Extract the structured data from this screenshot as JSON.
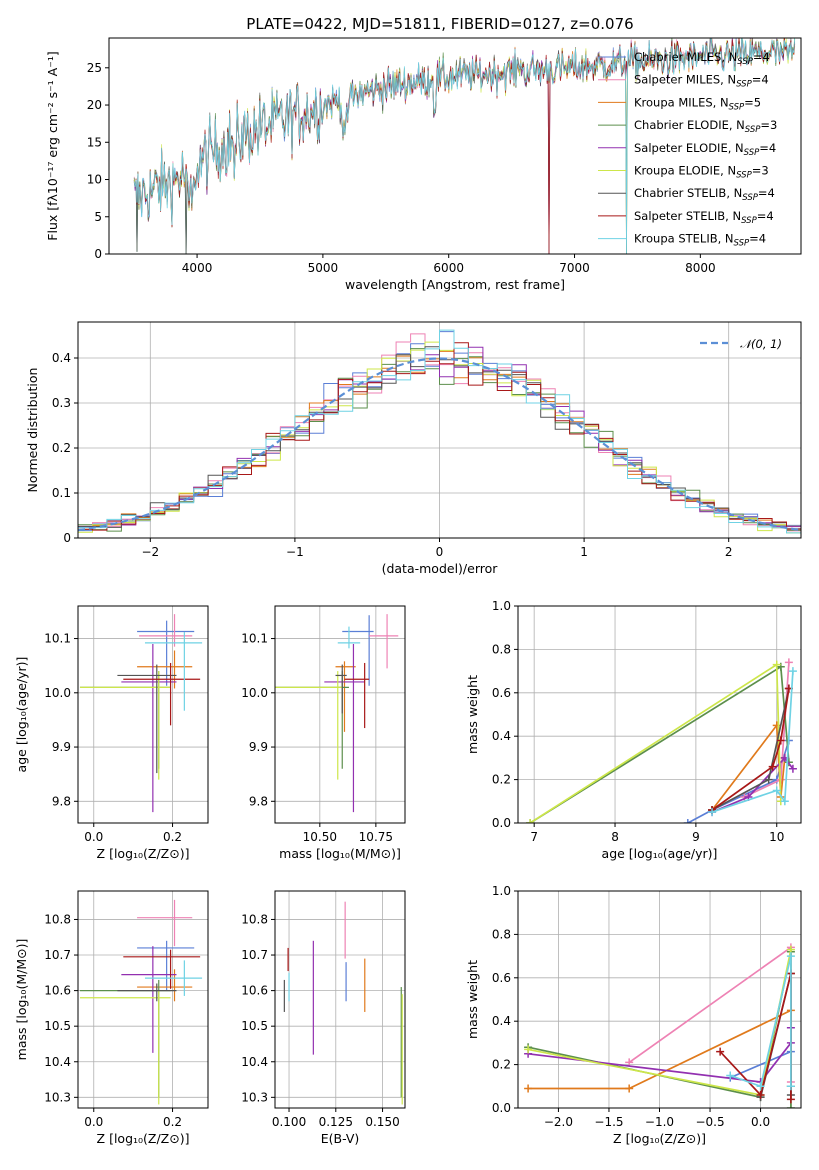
{
  "figure": {
    "title": "PLATE=0422, MJD=51811, FIBERID=0127, z=0.076"
  },
  "colors": {
    "Chabrier MILES": "#5b7fd6",
    "Salpeter MILES": "#ee82b4",
    "Kroupa MILES": "#e07a1c",
    "Chabrier ELODIE": "#5c8f4c",
    "Salpeter ELODIE": "#9230b0",
    "Kroupa ELODIE": "#cde64a",
    "Chabrier STELIB": "#555555",
    "Salpeter STELIB": "#a81818",
    "Kroupa STELIB": "#6fd2e4",
    "normal": "#5b8fd6"
  },
  "chart_data": [
    {
      "id": "spectrum",
      "type": "line",
      "xlabel": "wavelength [Angstrom, rest frame]",
      "ylabel": "Flux [fλ10⁻¹⁷ erg cm⁻² s⁻¹ A⁻¹]",
      "xlim": [
        3300,
        8800
      ],
      "ylim": [
        0,
        29
      ],
      "xticks": [
        4000,
        5000,
        6000,
        7000,
        8000
      ],
      "yticks": [
        0,
        5,
        10,
        15,
        20,
        25
      ],
      "legend_position": "right",
      "legend": [
        {
          "name": "Chabrier MILES",
          "label": "Chabrier MILES, N",
          "sub": "SSP",
          "tail": "=4"
        },
        {
          "name": "Salpeter MILES",
          "label": "Salpeter MILES, N",
          "sub": "SSP",
          "tail": "=4"
        },
        {
          "name": "Kroupa MILES",
          "label": "Kroupa MILES, N",
          "sub": "SSP",
          "tail": "=5"
        },
        {
          "name": "Chabrier ELODIE",
          "label": "Chabrier ELODIE, N",
          "sub": "SSP",
          "tail": "=3"
        },
        {
          "name": "Salpeter ELODIE",
          "label": "Salpeter ELODIE, N",
          "sub": "SSP",
          "tail": "=4"
        },
        {
          "name": "Kroupa ELODIE",
          "label": "Kroupa ELODIE, N",
          "sub": "SSP",
          "tail": "=3"
        },
        {
          "name": "Chabrier STELIB",
          "label": "Chabrier STELIB, N",
          "sub": "SSP",
          "tail": "=4"
        },
        {
          "name": "Salpeter STELIB",
          "label": "Salpeter STELIB, N",
          "sub": "SSP",
          "tail": "=4"
        },
        {
          "name": "Kroupa STELIB",
          "label": "Kroupa STELIB, N",
          "sub": "SSP",
          "tail": "=4"
        }
      ],
      "continuum": {
        "x": [
          3500,
          3700,
          3900,
          4100,
          4300,
          4600,
          5000,
          5500,
          6000,
          6500,
          7000,
          7500,
          8000,
          8600
        ],
        "y": [
          7.5,
          9,
          10.5,
          13.5,
          15.5,
          17.5,
          20,
          22.5,
          23.8,
          24.5,
          25,
          25.8,
          26.5,
          27
        ]
      },
      "drops": [
        {
          "x": 3520,
          "y": 0.3
        },
        {
          "x": 3910,
          "y": 0
        },
        {
          "x": 6800,
          "y": 0
        },
        {
          "x": 7410,
          "y": 0
        }
      ]
    },
    {
      "id": "residuals",
      "type": "histogram",
      "xlabel": "(data-model)/error",
      "ylabel": "Normed distribution",
      "xlim": [
        -2.5,
        2.5
      ],
      "ylim": [
        0,
        0.48
      ],
      "xticks": [
        -2,
        -1,
        0,
        1,
        2
      ],
      "yticks": [
        0,
        0.1,
        0.2,
        0.3,
        0.4
      ],
      "grid": true,
      "legend_position": "top-right",
      "bin_width": 0.1,
      "normal_label": "𝒩(0, 1)"
    },
    {
      "id": "age-vs-Z",
      "type": "errorbar",
      "xlabel": "Z [log₁₀(Z/Z⊙)]",
      "ylabel": "age  [log₁₀(age/yr)]",
      "xlim": [
        -0.04,
        0.29
      ],
      "ylim": [
        9.76,
        10.16
      ],
      "xticks": [
        0.0,
        0.2
      ],
      "xtick_labels": [
        "0.0",
        "0.2"
      ],
      "yticks": [
        9.8,
        9.9,
        10.0,
        10.1
      ],
      "ytick_labels": [
        "9.8",
        "9.9",
        "10.0",
        "10.1"
      ],
      "grid": true,
      "points": [
        {
          "series": "Chabrier MILES",
          "x": 0.185,
          "xl": 0.075,
          "xh": 0.07,
          "y": 10.113,
          "yl": 0.1,
          "yh": 0.02
        },
        {
          "series": "Salpeter MILES",
          "x": 0.205,
          "xl": 0.09,
          "xh": 0.045,
          "y": 10.105,
          "yl": 0.02,
          "yh": 0.04
        },
        {
          "series": "Kroupa MILES",
          "x": 0.205,
          "xl": 0.095,
          "xh": 0.045,
          "y": 10.048,
          "yl": 0.04,
          "yh": 0.03
        },
        {
          "series": "Chabrier ELODIE",
          "x": 0.165,
          "xl": 0.2,
          "xh": 0.03,
          "y": 10.01,
          "yl": 0.15,
          "yh": 0.03
        },
        {
          "series": "Salpeter ELODIE",
          "x": 0.15,
          "xl": 0.08,
          "xh": 0.06,
          "y": 10.02,
          "yl": 0.24,
          "yh": 0.07
        },
        {
          "series": "Kroupa ELODIE",
          "x": 0.165,
          "xl": 0.2,
          "xh": 0.03,
          "y": 10.01,
          "yl": 0.17,
          "yh": 0.03
        },
        {
          "series": "Chabrier STELIB",
          "x": 0.16,
          "xl": 0.1,
          "xh": 0.05,
          "y": 10.032,
          "yl": 0.18,
          "yh": 0.02
        },
        {
          "series": "Salpeter STELIB",
          "x": 0.195,
          "xl": 0.12,
          "xh": 0.075,
          "y": 10.025,
          "yl": 0.085,
          "yh": 0.03
        },
        {
          "series": "Kroupa STELIB",
          "x": 0.23,
          "xl": 0.1,
          "xh": 0.045,
          "y": 10.092,
          "yl": 0.125,
          "yh": 0.02
        }
      ]
    },
    {
      "id": "age-vs-mass",
      "type": "errorbar",
      "xlabel": "mass [log₁₀(M/M⊙)]",
      "ylabel": "",
      "xlim": [
        10.3,
        10.88
      ],
      "ylim": [
        9.76,
        10.16
      ],
      "xticks": [
        10.5,
        10.75
      ],
      "xtick_labels": [
        "10.50",
        "10.75"
      ],
      "yticks": [
        9.8,
        9.9,
        10.0,
        10.1
      ],
      "ytick_labels": [
        "9.8",
        "9.9",
        "10.0",
        "10.1"
      ],
      "grid": true,
      "points": [
        {
          "series": "Chabrier MILES",
          "x": 10.72,
          "xl": 0.12,
          "xh": 0.02,
          "y": 10.113,
          "yl": 0.1,
          "yh": 0.03
        },
        {
          "series": "Salpeter MILES",
          "x": 10.8,
          "xl": 0.08,
          "xh": 0.05,
          "y": 10.105,
          "yl": 0.06,
          "yh": 0.04
        },
        {
          "series": "Kroupa MILES",
          "x": 10.61,
          "xl": 0.04,
          "xh": 0.05,
          "y": 10.048,
          "yl": 0.12,
          "yh": 0.01
        },
        {
          "series": "Chabrier ELODIE",
          "x": 10.6,
          "xl": 0.3,
          "xh": 0.03,
          "y": 10.01,
          "yl": 0.15,
          "yh": 0.03
        },
        {
          "series": "Salpeter ELODIE",
          "x": 10.65,
          "xl": 0.13,
          "xh": 0.05,
          "y": 10.02,
          "yl": 0.24,
          "yh": 0.07
        },
        {
          "series": "Kroupa ELODIE",
          "x": 10.58,
          "xl": 0.28,
          "xh": 0.02,
          "y": 10.01,
          "yl": 0.17,
          "yh": 0.03
        },
        {
          "series": "Chabrier STELIB",
          "x": 10.6,
          "xl": 0.03,
          "xh": 0.02,
          "y": 10.032,
          "yl": 0.07,
          "yh": 0.02
        },
        {
          "series": "Salpeter STELIB",
          "x": 10.7,
          "xl": 0.09,
          "xh": 0.02,
          "y": 10.025,
          "yl": 0.09,
          "yh": 0.03
        },
        {
          "series": "Kroupa STELIB",
          "x": 10.63,
          "xl": 0.05,
          "xh": 0.05,
          "y": 10.092,
          "yl": 0.01,
          "yh": 0.03
        }
      ]
    },
    {
      "id": "weight-vs-age",
      "type": "line",
      "xlabel": "age  [log₁₀(age/yr)]",
      "ylabel": "mass weight",
      "xlim": [
        6.8,
        10.3
      ],
      "ylim": [
        0,
        1
      ],
      "xticks": [
        7,
        8,
        9,
        10
      ],
      "xtick_labels": [
        "7",
        "8",
        "9",
        "10"
      ],
      "yticks": [
        0,
        0.2,
        0.4,
        0.6,
        0.8,
        1.0
      ],
      "ytick_labels": [
        "0.0",
        "0.2",
        "0.4",
        "0.6",
        "0.8",
        "1.0"
      ],
      "grid": true,
      "series": [
        {
          "name": "Chabrier MILES",
          "x": [
            8.9,
            9.2,
            10.0,
            10.15
          ],
          "y": [
            0.0,
            0.06,
            0.2,
            0.38
          ]
        },
        {
          "name": "Salpeter MILES",
          "x": [
            9.6,
            10.05,
            10.15
          ],
          "y": [
            0.12,
            0.2,
            0.74
          ]
        },
        {
          "name": "Kroupa MILES",
          "x": [
            9.2,
            10.0,
            10.05,
            10.1
          ],
          "y": [
            0.06,
            0.45,
            0.12,
            0.3
          ]
        },
        {
          "name": "Chabrier ELODIE",
          "x": [
            6.95,
            10.05,
            10.15
          ],
          "y": [
            0.0,
            0.72,
            0.28
          ]
        },
        {
          "name": "Salpeter ELODIE",
          "x": [
            9.2,
            9.65,
            10.1,
            10.2
          ],
          "y": [
            0.05,
            0.12,
            0.3,
            0.25
          ]
        },
        {
          "name": "Kroupa ELODIE",
          "x": [
            6.95,
            10.0,
            10.05
          ],
          "y": [
            0.0,
            0.73,
            0.1
          ]
        },
        {
          "name": "Chabrier STELIB",
          "x": [
            9.2,
            9.9,
            10.15
          ],
          "y": [
            0.06,
            0.2,
            0.62
          ]
        },
        {
          "name": "Salpeter STELIB",
          "x": [
            9.2,
            9.95,
            10.05,
            10.15
          ],
          "y": [
            0.06,
            0.26,
            0.38,
            0.62
          ]
        },
        {
          "name": "Kroupa STELIB",
          "x": [
            9.2,
            10.0,
            10.1,
            10.2
          ],
          "y": [
            0.05,
            0.15,
            0.1,
            0.7
          ]
        }
      ]
    },
    {
      "id": "mass-vs-Z",
      "type": "errorbar",
      "xlabel": "Z [log₁₀(Z/Z⊙)]",
      "ylabel": "mass [log₁₀(M/M⊙)]",
      "xlim": [
        -0.04,
        0.29
      ],
      "ylim": [
        10.27,
        10.88
      ],
      "xticks": [
        0.0,
        0.2
      ],
      "xtick_labels": [
        "0.0",
        "0.2"
      ],
      "yticks": [
        10.3,
        10.4,
        10.5,
        10.6,
        10.7,
        10.8
      ],
      "ytick_labels": [
        "10.3",
        "10.4",
        "10.5",
        "10.6",
        "10.7",
        "10.8"
      ],
      "grid": true,
      "points": [
        {
          "series": "Chabrier MILES",
          "x": 0.185,
          "xl": 0.075,
          "xh": 0.07,
          "y": 10.72,
          "yl": 0.12,
          "yh": 0.02
        },
        {
          "series": "Salpeter MILES",
          "x": 0.205,
          "xl": 0.095,
          "xh": 0.045,
          "y": 10.805,
          "yl": 0.08,
          "yh": 0.05
        },
        {
          "series": "Kroupa MILES",
          "x": 0.205,
          "xl": 0.095,
          "xh": 0.045,
          "y": 10.61,
          "yl": 0.04,
          "yh": 0.05
        },
        {
          "series": "Chabrier ELODIE",
          "x": 0.165,
          "xl": 0.2,
          "xh": 0.03,
          "y": 10.6,
          "yl": 0.3,
          "yh": 0.03
        },
        {
          "series": "Salpeter ELODIE",
          "x": 0.15,
          "xl": 0.08,
          "xh": 0.06,
          "y": 10.645,
          "yl": 0.22,
          "yh": 0.08
        },
        {
          "series": "Kroupa ELODIE",
          "x": 0.165,
          "xl": 0.2,
          "xh": 0.03,
          "y": 10.58,
          "yl": 0.3,
          "yh": 0.02
        },
        {
          "series": "Chabrier STELIB",
          "x": 0.16,
          "xl": 0.1,
          "xh": 0.05,
          "y": 10.6,
          "yl": 0.03,
          "yh": 0.02
        },
        {
          "series": "Salpeter STELIB",
          "x": 0.195,
          "xl": 0.12,
          "xh": 0.075,
          "y": 10.695,
          "yl": 0.09,
          "yh": 0.02
        },
        {
          "series": "Kroupa STELIB",
          "x": 0.23,
          "xl": 0.1,
          "xh": 0.045,
          "y": 10.635,
          "yl": 0.05,
          "yh": 0.05
        }
      ]
    },
    {
      "id": "mass-vs-EBV",
      "type": "errorbar",
      "xlabel": "E(B-V)",
      "ylabel": "",
      "xlim": [
        0.0925,
        0.162
      ],
      "ylim": [
        10.27,
        10.88
      ],
      "xticks": [
        0.1,
        0.125,
        0.15
      ],
      "xtick_labels": [
        "0.100",
        "0.125",
        "0.150"
      ],
      "yticks": [
        10.3,
        10.4,
        10.5,
        10.6,
        10.7,
        10.8
      ],
      "ytick_labels": [
        "10.3",
        "10.4",
        "10.5",
        "10.6",
        "10.7",
        "10.8"
      ],
      "grid": true,
      "points": [
        {
          "series": "Chabrier MILES",
          "x": 0.1305,
          "xl": 0,
          "xh": 0,
          "y": 10.63,
          "yl": 0.06,
          "yh": 0.05
        },
        {
          "series": "Salpeter MILES",
          "x": 0.13,
          "xl": 0,
          "xh": 0,
          "y": 10.76,
          "yl": 0.07,
          "yh": 0.09
        },
        {
          "series": "Kroupa MILES",
          "x": 0.1405,
          "xl": 0,
          "xh": 0,
          "y": 10.62,
          "yl": 0.08,
          "yh": 0.07
        },
        {
          "series": "Chabrier ELODIE",
          "x": 0.16,
          "xl": 0,
          "xh": 0,
          "y": 10.45,
          "yl": 0.15,
          "yh": 0.16
        },
        {
          "series": "Salpeter ELODIE",
          "x": 0.113,
          "xl": 0,
          "xh": 0,
          "y": 10.58,
          "yl": 0.16,
          "yh": 0.16
        },
        {
          "series": "Kroupa ELODIE",
          "x": 0.1605,
          "xl": 0,
          "xh": 0,
          "y": 10.44,
          "yl": 0.16,
          "yh": 0.15
        },
        {
          "series": "Chabrier STELIB",
          "x": 0.0975,
          "xl": 0,
          "xh": 0,
          "y": 10.59,
          "yl": 0.05,
          "yh": 0.04
        },
        {
          "series": "Salpeter STELIB",
          "x": 0.0995,
          "xl": 0,
          "xh": 0,
          "y": 10.685,
          "yl": 0.03,
          "yh": 0.035
        },
        {
          "series": "Kroupa STELIB",
          "x": 0.1,
          "xl": 0,
          "xh": 0,
          "y": 10.61,
          "yl": 0.04,
          "yh": 0.04
        }
      ]
    },
    {
      "id": "weight-vs-Z",
      "type": "line",
      "xlabel": "Z [log₁₀(Z/Z⊙)]",
      "ylabel": "mass weight",
      "xlim": [
        -2.4,
        0.4
      ],
      "ylim": [
        0,
        1
      ],
      "xticks": [
        -2.0,
        -1.5,
        -1.0,
        -0.5,
        0.0
      ],
      "xtick_labels": [
        "−2.0",
        "−1.5",
        "−1.0",
        "−0.5",
        "0.0"
      ],
      "yticks": [
        0,
        0.2,
        0.4,
        0.6,
        0.8,
        1.0
      ],
      "ytick_labels": [
        "0.0",
        "0.2",
        "0.4",
        "0.6",
        "0.8",
        "1.0"
      ],
      "grid": true,
      "series": [
        {
          "name": "Chabrier MILES",
          "x": [
            -0.3,
            0.3,
            0.3
          ],
          "y": [
            0.14,
            0.26,
            0.1
          ]
        },
        {
          "name": "Salpeter MILES",
          "x": [
            -1.3,
            0.3,
            0.3
          ],
          "y": [
            0.21,
            0.74,
            0.12
          ]
        },
        {
          "name": "Kroupa MILES",
          "x": [
            -2.3,
            -1.3,
            0.3,
            0.3
          ],
          "y": [
            0.09,
            0.09,
            0.45,
            0.1
          ]
        },
        {
          "name": "Chabrier ELODIE",
          "x": [
            -2.3,
            0.0,
            0.3,
            0.3
          ],
          "y": [
            0.28,
            0.05,
            0.72,
            0.0
          ]
        },
        {
          "name": "Salpeter ELODIE",
          "x": [
            -2.3,
            0.0,
            0.3,
            0.3
          ],
          "y": [
            0.25,
            0.12,
            0.3,
            0.37
          ]
        },
        {
          "name": "Kroupa ELODIE",
          "x": [
            -2.3,
            0.0,
            0.3
          ],
          "y": [
            0.27,
            0.06,
            0.73
          ]
        },
        {
          "name": "Chabrier STELIB",
          "x": [
            0.0,
            0.3,
            0.3
          ],
          "y": [
            0.05,
            0.62,
            0.06
          ]
        },
        {
          "name": "Salpeter STELIB",
          "x": [
            -0.4,
            0.0,
            0.3,
            0.3
          ],
          "y": [
            0.26,
            0.06,
            0.62,
            0.04
          ]
        },
        {
          "name": "Kroupa STELIB",
          "x": [
            -0.3,
            0.0,
            0.3,
            0.3
          ],
          "y": [
            0.15,
            0.1,
            0.7,
            0.1
          ]
        }
      ]
    }
  ]
}
